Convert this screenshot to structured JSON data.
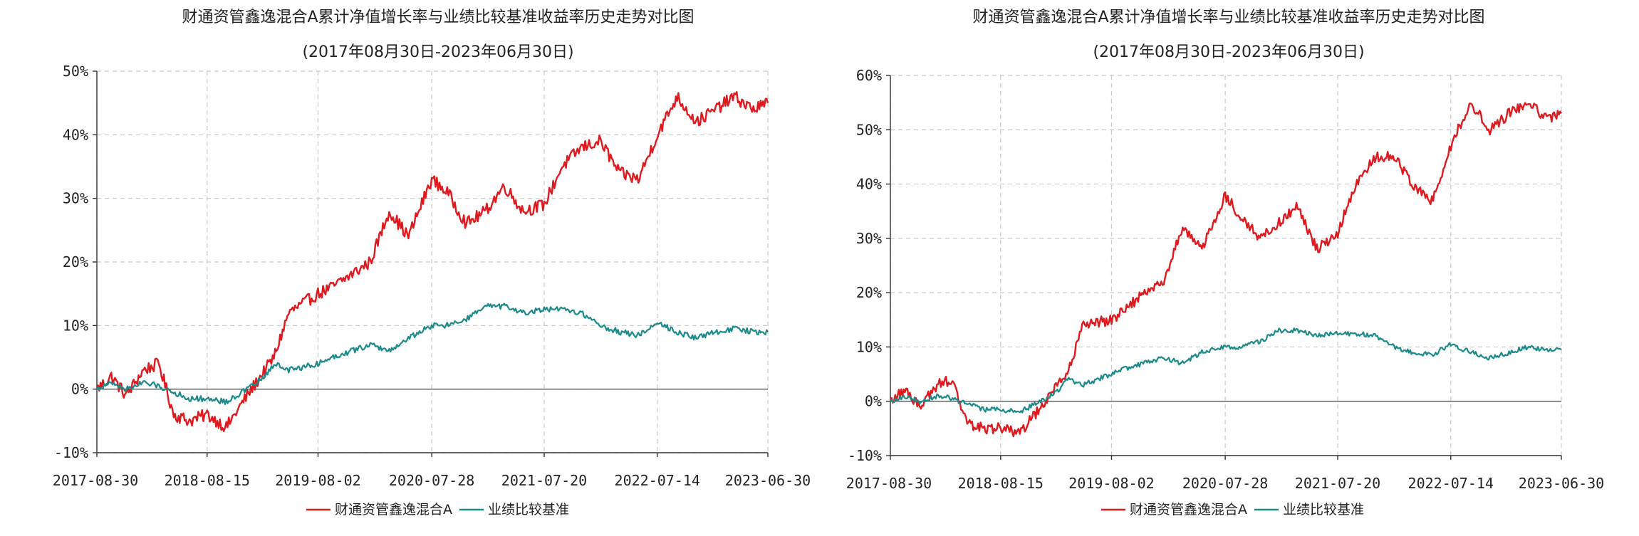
{
  "colors": {
    "fund": "#e0191e",
    "benchmark": "#1a8a8a"
  },
  "chart_data": [
    {
      "type": "line",
      "title": "财通资管鑫逸混合A累计净值增长率与业绩比较基准收益率历史走势对比图",
      "subtitle": "(2017年08月30日-2023年06月30日)",
      "x_tick_labels": [
        "2017-08-30",
        "2018-08-15",
        "2019-08-02",
        "2020-07-28",
        "2021-07-20",
        "2022-07-14",
        "2023-06-30"
      ],
      "y_tick_labels": [
        "50%",
        "40%",
        "30%",
        "20%",
        "10%",
        "0%",
        "-10%"
      ],
      "ylim": [
        -10,
        50
      ],
      "grid": true,
      "legend_position": "bottom",
      "x": [
        "2017-08-30",
        "2017-10-15",
        "2017-12-01",
        "2018-01-25",
        "2018-03-15",
        "2018-05-01",
        "2018-06-20",
        "2018-08-15",
        "2018-10-15",
        "2018-12-20",
        "2019-02-15",
        "2019-03-15",
        "2019-05-01",
        "2019-08-02",
        "2019-09-15",
        "2019-11-15",
        "2020-01-15",
        "2020-03-15",
        "2020-05-15",
        "2020-07-28",
        "2020-09-15",
        "2020-11-15",
        "2021-01-15",
        "2021-03-15",
        "2021-05-15",
        "2021-07-20",
        "2021-09-15",
        "2021-11-15",
        "2022-01-15",
        "2022-03-15",
        "2022-05-15",
        "2022-07-14",
        "2022-09-15",
        "2022-11-15",
        "2023-01-15",
        "2023-03-15",
        "2023-05-15",
        "2023-06-30"
      ],
      "series": [
        {
          "name": "财通资管鑫逸混合A",
          "values": [
            0,
            2,
            -1,
            3,
            4,
            -4,
            -5,
            -4,
            -6,
            -1,
            3,
            5,
            12,
            15,
            16,
            18,
            20,
            28,
            24,
            33,
            31,
            26,
            28,
            32,
            28,
            29,
            35,
            38,
            39,
            34,
            33,
            40,
            46,
            42,
            44,
            46,
            44,
            45
          ]
        },
        {
          "name": "业绩比较基准",
          "values": [
            0,
            1,
            0,
            1,
            0.5,
            -0.5,
            -1.5,
            -1.5,
            -2,
            0,
            2,
            4,
            3,
            4,
            5,
            6,
            7,
            6,
            8,
            10,
            10,
            11,
            13,
            13,
            12,
            12.5,
            12.5,
            12,
            10,
            9,
            8.5,
            10.5,
            9,
            8,
            9,
            9.5,
            9,
            9
          ]
        }
      ]
    },
    {
      "type": "line",
      "title": "财通资管鑫逸混合A累计净值增长率与业绩比较基准收益率历史走势对比图",
      "subtitle": "(2017年08月30日-2023年06月30日)",
      "x_tick_labels": [
        "2017-08-30",
        "2018-08-15",
        "2019-08-02",
        "2020-07-28",
        "2021-07-20",
        "2022-07-14",
        "2023-06-30"
      ],
      "y_tick_labels": [
        "60%",
        "50%",
        "40%",
        "30%",
        "20%",
        "10%",
        "0%",
        "-10%"
      ],
      "ylim": [
        -10,
        60
      ],
      "grid": true,
      "legend_position": "bottom",
      "x": [
        "2017-08-30",
        "2017-10-15",
        "2017-12-01",
        "2018-01-25",
        "2018-03-15",
        "2018-05-01",
        "2018-06-20",
        "2018-08-15",
        "2018-10-15",
        "2018-12-20",
        "2019-02-15",
        "2019-03-15",
        "2019-05-01",
        "2019-08-02",
        "2019-09-15",
        "2019-11-15",
        "2020-01-15",
        "2020-03-15",
        "2020-05-15",
        "2020-07-28",
        "2020-09-15",
        "2020-11-15",
        "2021-01-15",
        "2021-03-15",
        "2021-05-15",
        "2021-07-20",
        "2021-09-15",
        "2021-11-15",
        "2022-01-15",
        "2022-03-15",
        "2022-05-15",
        "2022-07-14",
        "2022-09-15",
        "2022-11-15",
        "2023-01-15",
        "2023-03-15",
        "2023-05-15",
        "2023-06-30"
      ],
      "series": [
        {
          "name": "财通资管鑫逸混合A",
          "values": [
            0,
            2,
            -1,
            3,
            4,
            -4,
            -5,
            -5,
            -6,
            -1,
            3,
            5,
            14,
            15,
            17,
            20,
            22,
            32,
            28,
            38,
            34,
            30,
            33,
            36,
            28,
            31,
            40,
            45,
            45,
            40,
            37,
            47,
            55,
            50,
            53,
            55,
            52,
            53
          ]
        },
        {
          "name": "业绩比较基准",
          "values": [
            0,
            1,
            0,
            1,
            0.5,
            -0.5,
            -1.5,
            -1.5,
            -2,
            0,
            2,
            4,
            3,
            5,
            6,
            7,
            8,
            7,
            9,
            10,
            10,
            11,
            13,
            13,
            12,
            12.5,
            12.5,
            12,
            10,
            9,
            8.5,
            10.5,
            9,
            8,
            9,
            10,
            9.5,
            9.5
          ]
        }
      ]
    }
  ]
}
